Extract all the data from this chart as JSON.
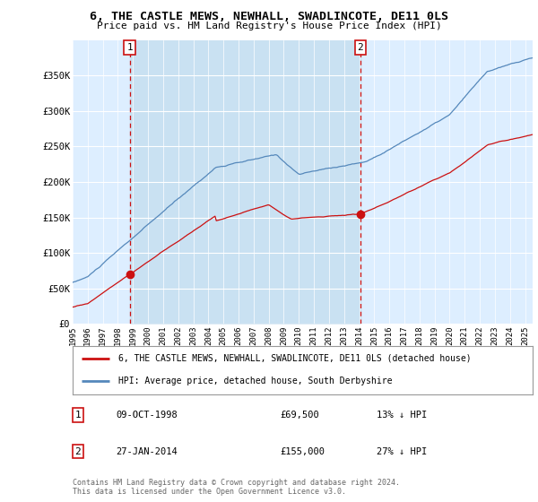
{
  "title": "6, THE CASTLE MEWS, NEWHALL, SWADLINCOTE, DE11 0LS",
  "subtitle": "Price paid vs. HM Land Registry's House Price Index (HPI)",
  "ylim": [
    0,
    400000
  ],
  "yticks": [
    0,
    50000,
    100000,
    150000,
    200000,
    250000,
    300000,
    350000
  ],
  "ytick_labels": [
    "£0",
    "£50K",
    "£100K",
    "£150K",
    "£200K",
    "£250K",
    "£300K",
    "£350K"
  ],
  "background_color": "#ffffff",
  "plot_bg_color": "#ddeeff",
  "grid_color": "#ffffff",
  "hpi_color": "#5588bb",
  "price_color": "#cc1111",
  "vline_color": "#cc1111",
  "shade_color": "#cce0f0",
  "point1": {
    "year": 1998.78,
    "value": 69500,
    "label": "1",
    "date": "09-OCT-1998",
    "amount": "£69,500",
    "note": "13% ↓ HPI"
  },
  "point2": {
    "year": 2014.07,
    "value": 155000,
    "label": "2",
    "date": "27-JAN-2014",
    "amount": "£155,000",
    "note": "27% ↓ HPI"
  },
  "legend_label_price": "6, THE CASTLE MEWS, NEWHALL, SWADLINCOTE, DE11 0LS (detached house)",
  "legend_label_hpi": "HPI: Average price, detached house, South Derbyshire",
  "footer": "Contains HM Land Registry data © Crown copyright and database right 2024.\nThis data is licensed under the Open Government Licence v3.0.",
  "xmin": 1995,
  "xmax": 2025.5
}
